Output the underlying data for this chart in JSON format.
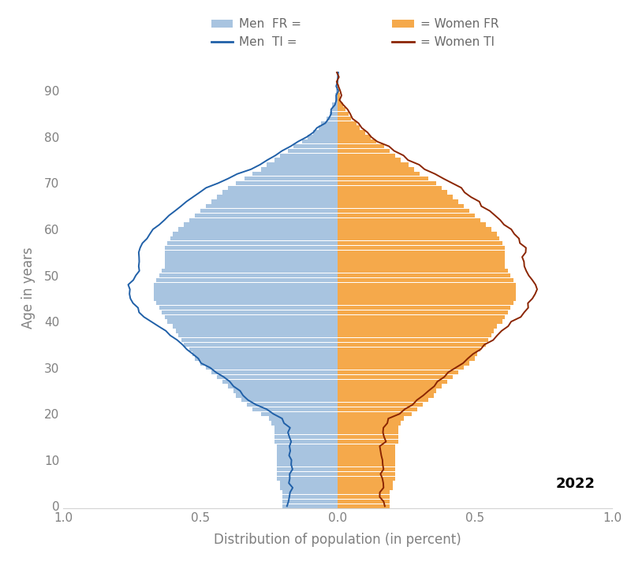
{
  "xlabel": "Distribution of population (in percent)",
  "ylabel": "Age in years",
  "xlim": [
    -1.0,
    1.0
  ],
  "ylim": [
    -0.5,
    95
  ],
  "yticks": [
    0,
    10,
    20,
    30,
    40,
    50,
    60,
    70,
    80,
    90
  ],
  "xticks": [
    -1.0,
    -0.5,
    0.0,
    0.5,
    1.0
  ],
  "xticklabels": [
    "1.0",
    "0.5",
    "0.0",
    "0.5",
    "1.0"
  ],
  "year_label": "2022",
  "bar_color_men": "#a8c4e0",
  "bar_color_women": "#f5a94b",
  "line_color_men_ti": "#2060a8",
  "line_color_women_ti": "#8b2500",
  "ages": [
    0,
    1,
    2,
    3,
    4,
    5,
    6,
    7,
    8,
    9,
    10,
    11,
    12,
    13,
    14,
    15,
    16,
    17,
    18,
    19,
    20,
    21,
    22,
    23,
    24,
    25,
    26,
    27,
    28,
    29,
    30,
    31,
    32,
    33,
    34,
    35,
    36,
    37,
    38,
    39,
    40,
    41,
    42,
    43,
    44,
    45,
    46,
    47,
    48,
    49,
    50,
    51,
    52,
    53,
    54,
    55,
    56,
    57,
    58,
    59,
    60,
    61,
    62,
    63,
    64,
    65,
    66,
    67,
    68,
    69,
    70,
    71,
    72,
    73,
    74,
    75,
    76,
    77,
    78,
    79,
    80,
    81,
    82,
    83,
    84,
    85,
    86,
    87,
    88,
    89,
    90,
    91,
    92,
    93,
    94
  ],
  "men_fr": [
    0.2,
    0.2,
    0.2,
    0.2,
    0.21,
    0.21,
    0.22,
    0.22,
    0.22,
    0.22,
    0.22,
    0.22,
    0.22,
    0.22,
    0.23,
    0.23,
    0.23,
    0.23,
    0.24,
    0.25,
    0.28,
    0.31,
    0.33,
    0.35,
    0.37,
    0.38,
    0.4,
    0.42,
    0.44,
    0.46,
    0.48,
    0.5,
    0.52,
    0.53,
    0.54,
    0.56,
    0.57,
    0.58,
    0.59,
    0.6,
    0.62,
    0.63,
    0.64,
    0.65,
    0.66,
    0.67,
    0.67,
    0.67,
    0.67,
    0.66,
    0.65,
    0.64,
    0.63,
    0.63,
    0.63,
    0.63,
    0.63,
    0.62,
    0.61,
    0.6,
    0.58,
    0.56,
    0.54,
    0.52,
    0.5,
    0.48,
    0.46,
    0.44,
    0.42,
    0.4,
    0.37,
    0.34,
    0.31,
    0.28,
    0.26,
    0.23,
    0.21,
    0.18,
    0.16,
    0.13,
    0.11,
    0.09,
    0.07,
    0.06,
    0.04,
    0.03,
    0.02,
    0.02,
    0.01,
    0.01,
    0.005,
    0.003,
    0.002,
    0.001,
    0.001
  ],
  "women_fr": [
    0.19,
    0.19,
    0.19,
    0.19,
    0.2,
    0.2,
    0.21,
    0.21,
    0.21,
    0.21,
    0.21,
    0.21,
    0.21,
    0.21,
    0.22,
    0.22,
    0.22,
    0.22,
    0.23,
    0.24,
    0.27,
    0.29,
    0.31,
    0.33,
    0.35,
    0.36,
    0.38,
    0.4,
    0.42,
    0.44,
    0.46,
    0.48,
    0.5,
    0.51,
    0.52,
    0.54,
    0.55,
    0.56,
    0.57,
    0.58,
    0.6,
    0.61,
    0.62,
    0.63,
    0.64,
    0.65,
    0.65,
    0.65,
    0.65,
    0.64,
    0.63,
    0.62,
    0.61,
    0.61,
    0.61,
    0.61,
    0.61,
    0.6,
    0.59,
    0.58,
    0.56,
    0.54,
    0.52,
    0.5,
    0.48,
    0.46,
    0.44,
    0.42,
    0.4,
    0.38,
    0.36,
    0.33,
    0.3,
    0.28,
    0.26,
    0.23,
    0.21,
    0.19,
    0.17,
    0.14,
    0.12,
    0.1,
    0.08,
    0.07,
    0.05,
    0.04,
    0.03,
    0.02,
    0.01,
    0.01,
    0.007,
    0.005,
    0.003,
    0.001,
    0.001
  ],
  "men_ti": [
    0.18,
    0.18,
    0.17,
    0.17,
    0.17,
    0.17,
    0.17,
    0.17,
    0.17,
    0.17,
    0.17,
    0.17,
    0.17,
    0.17,
    0.17,
    0.18,
    0.18,
    0.18,
    0.19,
    0.2,
    0.23,
    0.26,
    0.29,
    0.32,
    0.34,
    0.36,
    0.38,
    0.4,
    0.42,
    0.44,
    0.46,
    0.49,
    0.51,
    0.53,
    0.55,
    0.57,
    0.59,
    0.61,
    0.63,
    0.65,
    0.68,
    0.7,
    0.72,
    0.73,
    0.74,
    0.75,
    0.76,
    0.76,
    0.76,
    0.75,
    0.74,
    0.73,
    0.72,
    0.72,
    0.72,
    0.72,
    0.72,
    0.71,
    0.7,
    0.69,
    0.67,
    0.65,
    0.63,
    0.61,
    0.59,
    0.57,
    0.55,
    0.53,
    0.51,
    0.48,
    0.44,
    0.4,
    0.36,
    0.32,
    0.29,
    0.26,
    0.23,
    0.2,
    0.17,
    0.14,
    0.11,
    0.09,
    0.07,
    0.05,
    0.04,
    0.03,
    0.02,
    0.01,
    0.01,
    0.005,
    0.003,
    0.002,
    0.001,
    0.001,
    0.001
  ],
  "women_ti": [
    0.17,
    0.17,
    0.16,
    0.16,
    0.16,
    0.16,
    0.16,
    0.16,
    0.16,
    0.16,
    0.16,
    0.16,
    0.16,
    0.16,
    0.17,
    0.17,
    0.17,
    0.17,
    0.18,
    0.19,
    0.22,
    0.24,
    0.27,
    0.29,
    0.31,
    0.33,
    0.35,
    0.37,
    0.39,
    0.41,
    0.43,
    0.46,
    0.48,
    0.5,
    0.52,
    0.54,
    0.56,
    0.58,
    0.6,
    0.62,
    0.64,
    0.66,
    0.68,
    0.69,
    0.7,
    0.71,
    0.72,
    0.72,
    0.72,
    0.71,
    0.7,
    0.69,
    0.68,
    0.68,
    0.68,
    0.68,
    0.68,
    0.67,
    0.66,
    0.65,
    0.63,
    0.61,
    0.59,
    0.57,
    0.55,
    0.53,
    0.51,
    0.49,
    0.47,
    0.45,
    0.42,
    0.38,
    0.35,
    0.32,
    0.29,
    0.26,
    0.24,
    0.21,
    0.18,
    0.15,
    0.13,
    0.11,
    0.08,
    0.07,
    0.05,
    0.04,
    0.03,
    0.02,
    0.01,
    0.01,
    0.007,
    0.005,
    0.003,
    0.001,
    0.001
  ]
}
